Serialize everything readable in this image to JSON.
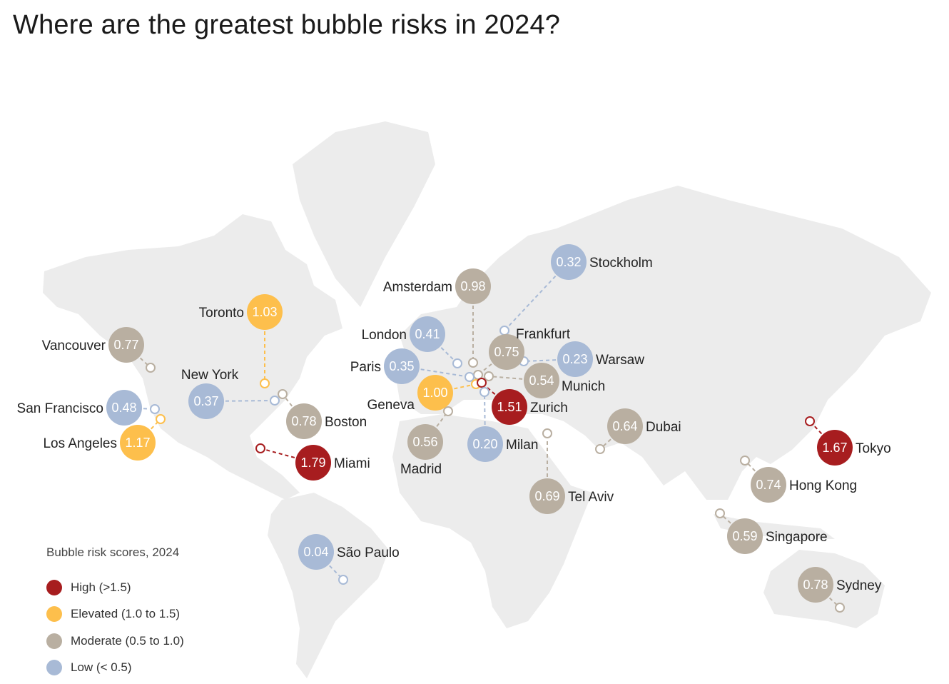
{
  "title": "Where are the greatest bubble risks in 2024?",
  "legend": {
    "title": "Bubble risk scores, 2024",
    "items": [
      {
        "key": "high",
        "label": "High (>1.5)",
        "color": "#a71d1f"
      },
      {
        "key": "elevated",
        "label": "Elevated (1.0 to 1.5)",
        "color": "#fdbf4c"
      },
      {
        "key": "moderate",
        "label": "Moderate (0.5 to 1.0)",
        "color": "#b9afa1"
      },
      {
        "key": "low",
        "label": "Low (< 0.5)",
        "color": "#a8bad6"
      }
    ]
  },
  "cities": [
    {
      "name": "Stockholm",
      "score": "0.32",
      "category": "low"
    },
    {
      "name": "Amsterdam",
      "score": "0.98",
      "category": "moderate"
    },
    {
      "name": "London",
      "score": "0.41",
      "category": "low"
    },
    {
      "name": "Frankfurt",
      "score": "0.75",
      "category": "moderate"
    },
    {
      "name": "Warsaw",
      "score": "0.23",
      "category": "low"
    },
    {
      "name": "Paris",
      "score": "0.35",
      "category": "low"
    },
    {
      "name": "Munich",
      "score": "0.54",
      "category": "moderate"
    },
    {
      "name": "Geneva",
      "score": "1.00",
      "category": "elevated"
    },
    {
      "name": "Zurich",
      "score": "1.51",
      "category": "high"
    },
    {
      "name": "Milan",
      "score": "0.20",
      "category": "low"
    },
    {
      "name": "Madrid",
      "score": "0.56",
      "category": "moderate"
    },
    {
      "name": "Tel Aviv",
      "score": "0.69",
      "category": "moderate"
    },
    {
      "name": "Dubai",
      "score": "0.64",
      "category": "moderate"
    },
    {
      "name": "Tokyo",
      "score": "1.67",
      "category": "high"
    },
    {
      "name": "Hong Kong",
      "score": "0.74",
      "category": "moderate"
    },
    {
      "name": "Singapore",
      "score": "0.59",
      "category": "moderate"
    },
    {
      "name": "Sydney",
      "score": "0.78",
      "category": "moderate"
    },
    {
      "name": "São Paulo",
      "score": "0.04",
      "category": "low"
    },
    {
      "name": "Miami",
      "score": "1.79",
      "category": "high"
    },
    {
      "name": "Boston",
      "score": "0.78",
      "category": "moderate"
    },
    {
      "name": "New York",
      "score": "0.37",
      "category": "low"
    },
    {
      "name": "Toronto",
      "score": "1.03",
      "category": "elevated"
    },
    {
      "name": "Vancouver",
      "score": "0.77",
      "category": "moderate"
    },
    {
      "name": "San Francisco",
      "score": "0.48",
      "category": "low"
    },
    {
      "name": "Los Angeles",
      "score": "1.17",
      "category": "elevated"
    }
  ]
}
